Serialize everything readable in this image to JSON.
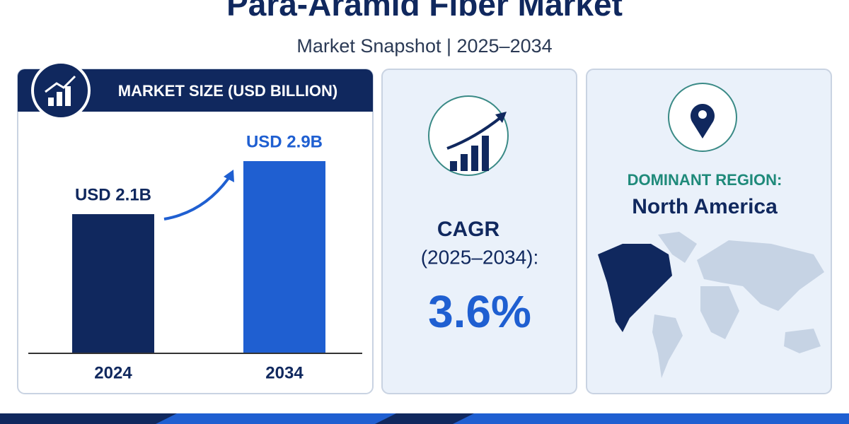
{
  "header": {
    "title": "Para-Aramid Fiber Market",
    "subtitle": "Market Snapshot | 2025–2034"
  },
  "chart_data": {
    "type": "bar",
    "title": "MARKET SIZE (USD BILLION)",
    "categories": [
      "2024",
      "2034"
    ],
    "values": [
      2.1,
      2.9
    ],
    "value_labels": [
      "USD 2.1B",
      "USD 2.9B"
    ],
    "colors": [
      "#10285e",
      "#1f5fd1"
    ]
  },
  "cagr": {
    "label": "CAGR",
    "period": "(2025–2034):",
    "value": "3.6%"
  },
  "region": {
    "label": "DOMINANT REGION:",
    "value": "North America"
  }
}
